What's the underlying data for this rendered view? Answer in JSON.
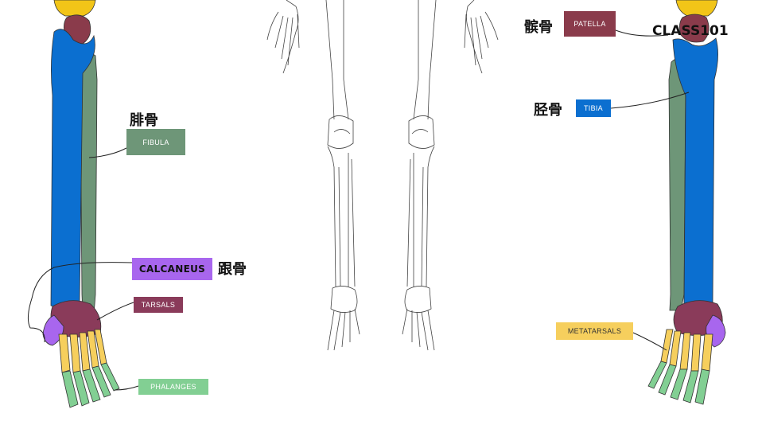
{
  "labels": {
    "fibula": "FIBULA",
    "calcaneus": "CALCANEUS",
    "tarsals": "TARSALS",
    "phalanges": "PHALANGES",
    "patella": "PATELLA",
    "tibia": "TIBIA",
    "metatarsals": "METATARSALS"
  },
  "chinese": {
    "fibula": "腓骨",
    "calcaneus": "跟骨",
    "patella": "髌骨",
    "tibia": "胫骨"
  },
  "brand": "CLASS101",
  "colors": {
    "tibia": "#0b6fd0",
    "fibula": "#6e9678",
    "patella": "#8a3b4b",
    "tarsals": "#8a3b5a",
    "calcaneus": "#a866ee",
    "metatarsals": "#f6cf5d",
    "phalanges": "#82cf93",
    "femur": "#f2c518"
  }
}
